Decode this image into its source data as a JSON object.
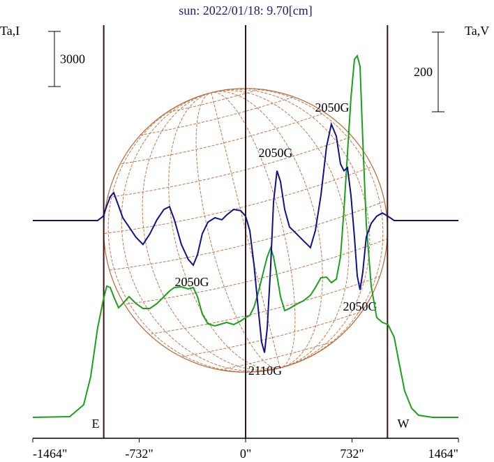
{
  "chart_data": {
    "type": "line",
    "title": "sun: 2022/01/18: 9.70[cm]",
    "ylabel": "Ta,I",
    "y2label": "Ta,V",
    "xlim": [
      -1464,
      1464
    ],
    "xticks": [
      {
        "value": -1464,
        "label": "-1464\""
      },
      {
        "value": -732,
        "label": "-732\""
      },
      {
        "value": 0,
        "label": "0\""
      },
      {
        "value": 732,
        "label": "732\""
      },
      {
        "value": 1464,
        "label": "1464\""
      }
    ],
    "ylim": [
      -1140,
      21356
    ],
    "y2lim": [
      -547,
      491
    ],
    "vlines": [
      -976,
      0,
      976
    ],
    "limb_labels": [
      "E",
      "W"
    ],
    "scale_bars": [
      {
        "value": 3000,
        "axis": "y"
      },
      {
        "value": 200,
        "axis": "y2"
      }
    ],
    "annotations": [
      "2050G",
      "2050G",
      "2050G",
      "2050G",
      "2110G"
    ],
    "x": [
      -1464,
      -1210,
      -1114,
      -1066,
      -1018,
      -979,
      -955,
      -931,
      -907,
      -874,
      -845,
      -802,
      -754,
      -706,
      -658,
      -610,
      -562,
      -523,
      -490,
      -442,
      -394,
      -360,
      -331,
      -298,
      -259,
      -211,
      -163,
      -130,
      -82,
      -34,
      0,
      29,
      58,
      86,
      110,
      130,
      149,
      173,
      192,
      216,
      240,
      269,
      302,
      350,
      398,
      446,
      480,
      518,
      557,
      590,
      624,
      653,
      677,
      701,
      725,
      749,
      768,
      787,
      806,
      830,
      864,
      902,
      941,
      979,
      1022,
      1056,
      1094,
      1142,
      1190,
      1286,
      1464
    ],
    "series": [
      {
        "color": "#1aa01a",
        "values": [
          0,
          38,
          684,
          2204,
          4864,
          6384,
          7144,
          7068,
          6574,
          5966,
          6194,
          6574,
          6194,
          5928,
          5928,
          6194,
          6574,
          6878,
          7068,
          7106,
          6992,
          7068,
          6574,
          5624,
          5092,
          4978,
          5092,
          5168,
          5054,
          5244,
          5434,
          5548,
          6004,
          6764,
          7524,
          8170,
          8740,
          9234,
          8740,
          7714,
          6574,
          5814,
          5928,
          6156,
          6346,
          6650,
          7068,
          7600,
          7638,
          7334,
          7524,
          8740,
          11324,
          14364,
          17404,
          19494,
          19684,
          19114,
          15124,
          10564,
          7144,
          5434,
          5168,
          5054,
          4370,
          2964,
          1444,
          494,
          114,
          0,
          0
        ]
      },
      {
        "color": "#10108a",
        "axis": "y2",
        "values": [
          0,
          0,
          0,
          0,
          0,
          11,
          37,
          60,
          70,
          37,
          7,
          -16,
          -42,
          -60,
          -33,
          2,
          28,
          35,
          2,
          -60,
          -98,
          -112,
          -86,
          -33,
          -4,
          7,
          2,
          14,
          28,
          25,
          11,
          -25,
          -112,
          -218,
          -305,
          -332,
          -270,
          -112,
          46,
          125,
          98,
          28,
          -16,
          -33,
          -51,
          -68,
          -25,
          63,
          186,
          242,
          212,
          142,
          125,
          133,
          63,
          -42,
          -139,
          -174,
          -130,
          -42,
          -7,
          11,
          19,
          11,
          0,
          0,
          0,
          0,
          0,
          0,
          0
        ]
      }
    ]
  }
}
